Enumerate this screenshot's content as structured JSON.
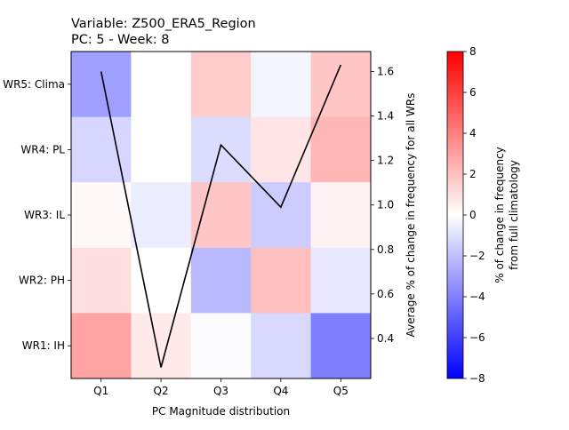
{
  "chart_data": {
    "type": "heatmap",
    "title_line1": "Variable: Z500_ERA5_Region",
    "title_line2": "PC: 5 - Week: 8",
    "xlabel": "PC Magnitude distribution",
    "x_categories": [
      "Q1",
      "Q2",
      "Q3",
      "Q4",
      "Q5"
    ],
    "y_categories": [
      "WR5: Clima",
      "WR4: PL",
      "WR3: IL",
      "WR2: PH",
      "WR1: IH"
    ],
    "values": [
      [
        -3.0,
        0.0,
        1.6,
        -0.3,
        1.8
      ],
      [
        -1.3,
        0.0,
        -1.1,
        0.8,
        2.3
      ],
      [
        0.2,
        -0.6,
        1.8,
        -1.6,
        0.4
      ],
      [
        1.0,
        0.0,
        -2.2,
        2.0,
        -0.7
      ],
      [
        2.9,
        0.7,
        -0.1,
        -1.2,
        -4.0
      ]
    ],
    "colorbar": {
      "label_line1": "% of change in frequency",
      "label_line2": "from full climatology",
      "range": [
        -8,
        8
      ],
      "ticks": [
        -8,
        -6,
        -4,
        -2,
        0,
        2,
        4,
        6,
        8
      ],
      "colormap": "bwr"
    },
    "line_series": {
      "ylabel": "Average % of change in frequency for all WRs",
      "ylim": [
        0.22,
        1.69
      ],
      "ticks": [
        0.4,
        0.6,
        0.8,
        1.0,
        1.2,
        1.4,
        1.6
      ],
      "x": [
        "Q1",
        "Q2",
        "Q3",
        "Q4",
        "Q5"
      ],
      "values": [
        1.6,
        0.27,
        1.27,
        0.99,
        1.63
      ],
      "color": "#000000"
    }
  }
}
